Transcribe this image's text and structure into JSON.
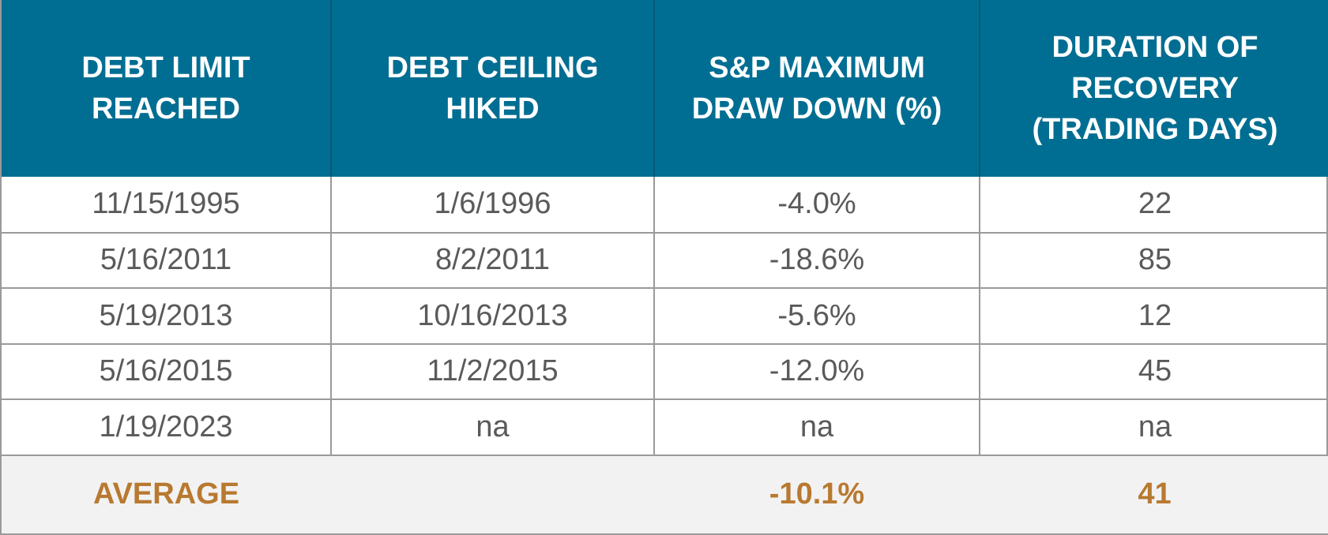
{
  "colors": {
    "header_bg": "#006e92",
    "header_text": "#ffffff",
    "cell_text": "#5a5a5a",
    "average_text": "#b87930",
    "average_bg": "#f2f2f2",
    "grid": "#9a9a9a"
  },
  "chart_data": {
    "type": "table",
    "columns": [
      "DEBT LIMIT\nREACHED",
      "DEBT CEILING\nHIKED",
      "S&P MAXIMUM\nDRAW DOWN (%)",
      "DURATION OF\nRECOVERY\n(TRADING DAYS)"
    ],
    "rows": [
      [
        "11/15/1995",
        "1/6/1996",
        "-4.0%",
        "22"
      ],
      [
        "5/16/2011",
        "8/2/2011",
        "-18.6%",
        "85"
      ],
      [
        "5/19/2013",
        "10/16/2013",
        "-5.6%",
        "12"
      ],
      [
        "5/16/2015",
        "11/2/2015",
        "-12.0%",
        "45"
      ],
      [
        "1/19/2023",
        "na",
        "na",
        "na"
      ]
    ],
    "average": {
      "label": "AVERAGE",
      "values": [
        "",
        "",
        "-10.1%",
        "41"
      ]
    }
  }
}
